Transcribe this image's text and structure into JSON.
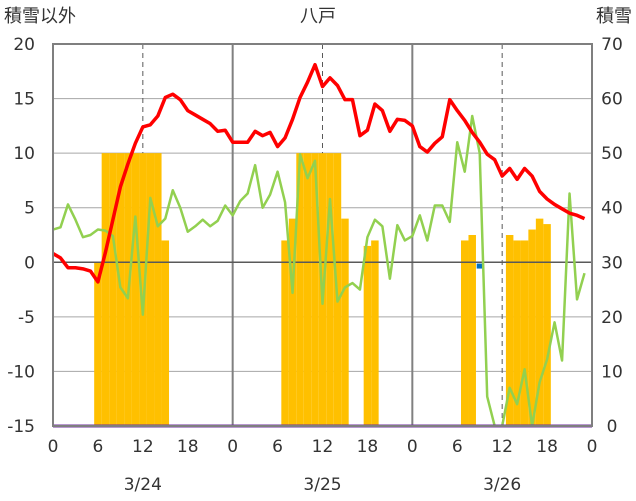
{
  "chart_data": {
    "type": "combo",
    "title": "八戸",
    "left_axis_title": "積雪以外",
    "right_axis_title": "積雪",
    "y_left_range": [
      -15,
      20
    ],
    "y_left_ticks": [
      "20",
      "15",
      "10",
      "5",
      "0",
      "-5",
      "-10",
      "-15"
    ],
    "y_right_range": [
      0,
      70
    ],
    "y_right_ticks": [
      "70",
      "60",
      "50",
      "40",
      "30",
      "20",
      "10",
      "0"
    ],
    "x_range_hours": [
      0,
      72
    ],
    "x_tick_labels": [
      "0",
      "6",
      "12",
      "18",
      "0",
      "6",
      "12",
      "18",
      "0",
      "6",
      "12",
      "18",
      "0"
    ],
    "date_labels": [
      "3/24",
      "3/25",
      "3/26"
    ],
    "colors": {
      "temperature": "#ff0000",
      "green_series": "#92d050",
      "snow_bars": "#ffc000",
      "precip": "#0070c0",
      "base_line": "#7030a0",
      "grid": "#595959",
      "zero_line": "#595959",
      "frame": "#7f7f7f"
    },
    "temperature": {
      "x": [
        0,
        1,
        2,
        3,
        4,
        5,
        6,
        7,
        8,
        9,
        10,
        11,
        12,
        13,
        14,
        15,
        16,
        17,
        18,
        19,
        20,
        21,
        22,
        23,
        24,
        25,
        26,
        27,
        28,
        29,
        30,
        31,
        32,
        33,
        34,
        35,
        36,
        37,
        38,
        39,
        40,
        41,
        42,
        43,
        44,
        45,
        46,
        47,
        48,
        49,
        50,
        51,
        52,
        53,
        54,
        55,
        56,
        57,
        58,
        59,
        60,
        61,
        62,
        63,
        64,
        65,
        66,
        67,
        68,
        69,
        70,
        71
      ],
      "y": [
        0.8,
        0.4,
        -0.5,
        -0.5,
        -0.6,
        -0.8,
        -1.8,
        0.9,
        3.9,
        6.9,
        9.0,
        10.9,
        12.4,
        12.6,
        13.4,
        15.1,
        15.4,
        14.9,
        13.9,
        13.5,
        13.1,
        12.7,
        12.0,
        12.1,
        11.0,
        11.0,
        11.0,
        12.0,
        11.6,
        11.9,
        10.6,
        11.4,
        13.1,
        15.1,
        16.5,
        18.1,
        16.1,
        16.9,
        16.2,
        14.9,
        14.9,
        11.6,
        12.1,
        14.5,
        13.9,
        12.0,
        13.1,
        13.0,
        12.5,
        10.6,
        10.1,
        10.9,
        11.5,
        14.9,
        13.9,
        13.0,
        11.9,
        11.0,
        9.9,
        9.4,
        7.9,
        8.6,
        7.6,
        8.6,
        7.9,
        6.5,
        5.8,
        5.3,
        4.9,
        4.5,
        4.3,
        4.0
      ]
    },
    "green_series": {
      "x": [
        0,
        1,
        2,
        3,
        4,
        5,
        6,
        7,
        8,
        9,
        10,
        11,
        12,
        13,
        14,
        15,
        16,
        17,
        18,
        19,
        20,
        21,
        22,
        23,
        24,
        25,
        26,
        27,
        28,
        29,
        30,
        31,
        32,
        33,
        34,
        35,
        36,
        37,
        38,
        39,
        40,
        41,
        42,
        43,
        44,
        45,
        46,
        47,
        48,
        49,
        50,
        51,
        52,
        53,
        54,
        55,
        56,
        57,
        58,
        59,
        60,
        61,
        62,
        63,
        64,
        65,
        66,
        67,
        68,
        69,
        70,
        71
      ],
      "y": [
        3.0,
        3.2,
        5.3,
        3.9,
        2.3,
        2.5,
        3.0,
        2.9,
        2.4,
        -2.3,
        -3.3,
        4.2,
        -4.8,
        5.9,
        3.3,
        4.0,
        6.6,
        5.0,
        2.8,
        3.3,
        3.9,
        3.3,
        3.8,
        5.2,
        4.3,
        5.6,
        6.3,
        8.9,
        5.0,
        6.2,
        8.3,
        5.5,
        -2.8,
        9.9,
        7.7,
        9.3,
        -3.8,
        5.8,
        -3.6,
        -2.3,
        -1.9,
        -2.5,
        2.3,
        3.9,
        3.3,
        -1.5,
        3.4,
        2.0,
        2.4,
        4.3,
        2.0,
        5.2,
        5.2,
        3.7,
        11.0,
        8.3,
        13.4,
        10.0,
        -12.3,
        -15.0,
        -15.0,
        -11.5,
        -13.0,
        -9.8,
        -15.0,
        -11.0,
        -8.9,
        -5.5,
        -9.0,
        6.3,
        -3.4,
        -1.0
      ]
    },
    "snow_bars": {
      "x": [
        6,
        7,
        8,
        9,
        10,
        11,
        12,
        13,
        14,
        15,
        30,
        31,
        32,
        33,
        34,
        35,
        36,
        37,
        38,
        39,
        40,
        41,
        42,
        43,
        44,
        45,
        46,
        47,
        48,
        49,
        50,
        51,
        52,
        53,
        54,
        55,
        56,
        57,
        58,
        59,
        60,
        61,
        62,
        63,
        64,
        65,
        66,
        67,
        68,
        69,
        70,
        71
      ],
      "depth": [
        30,
        50,
        50,
        50,
        50,
        50,
        50,
        50,
        50,
        34,
        0,
        34,
        38,
        50,
        50,
        50,
        50,
        50,
        50,
        38,
        0,
        0,
        33,
        34,
        0,
        0,
        0,
        0,
        0,
        0,
        0,
        0,
        0,
        0,
        0,
        34,
        35,
        0,
        0,
        0,
        0,
        35,
        34,
        34,
        36,
        38,
        37,
        0,
        0,
        0,
        0,
        0
      ]
    },
    "precip": {
      "x": [
        57
      ],
      "y": [
        -0.3
      ]
    },
    "base_line_value": -15
  }
}
